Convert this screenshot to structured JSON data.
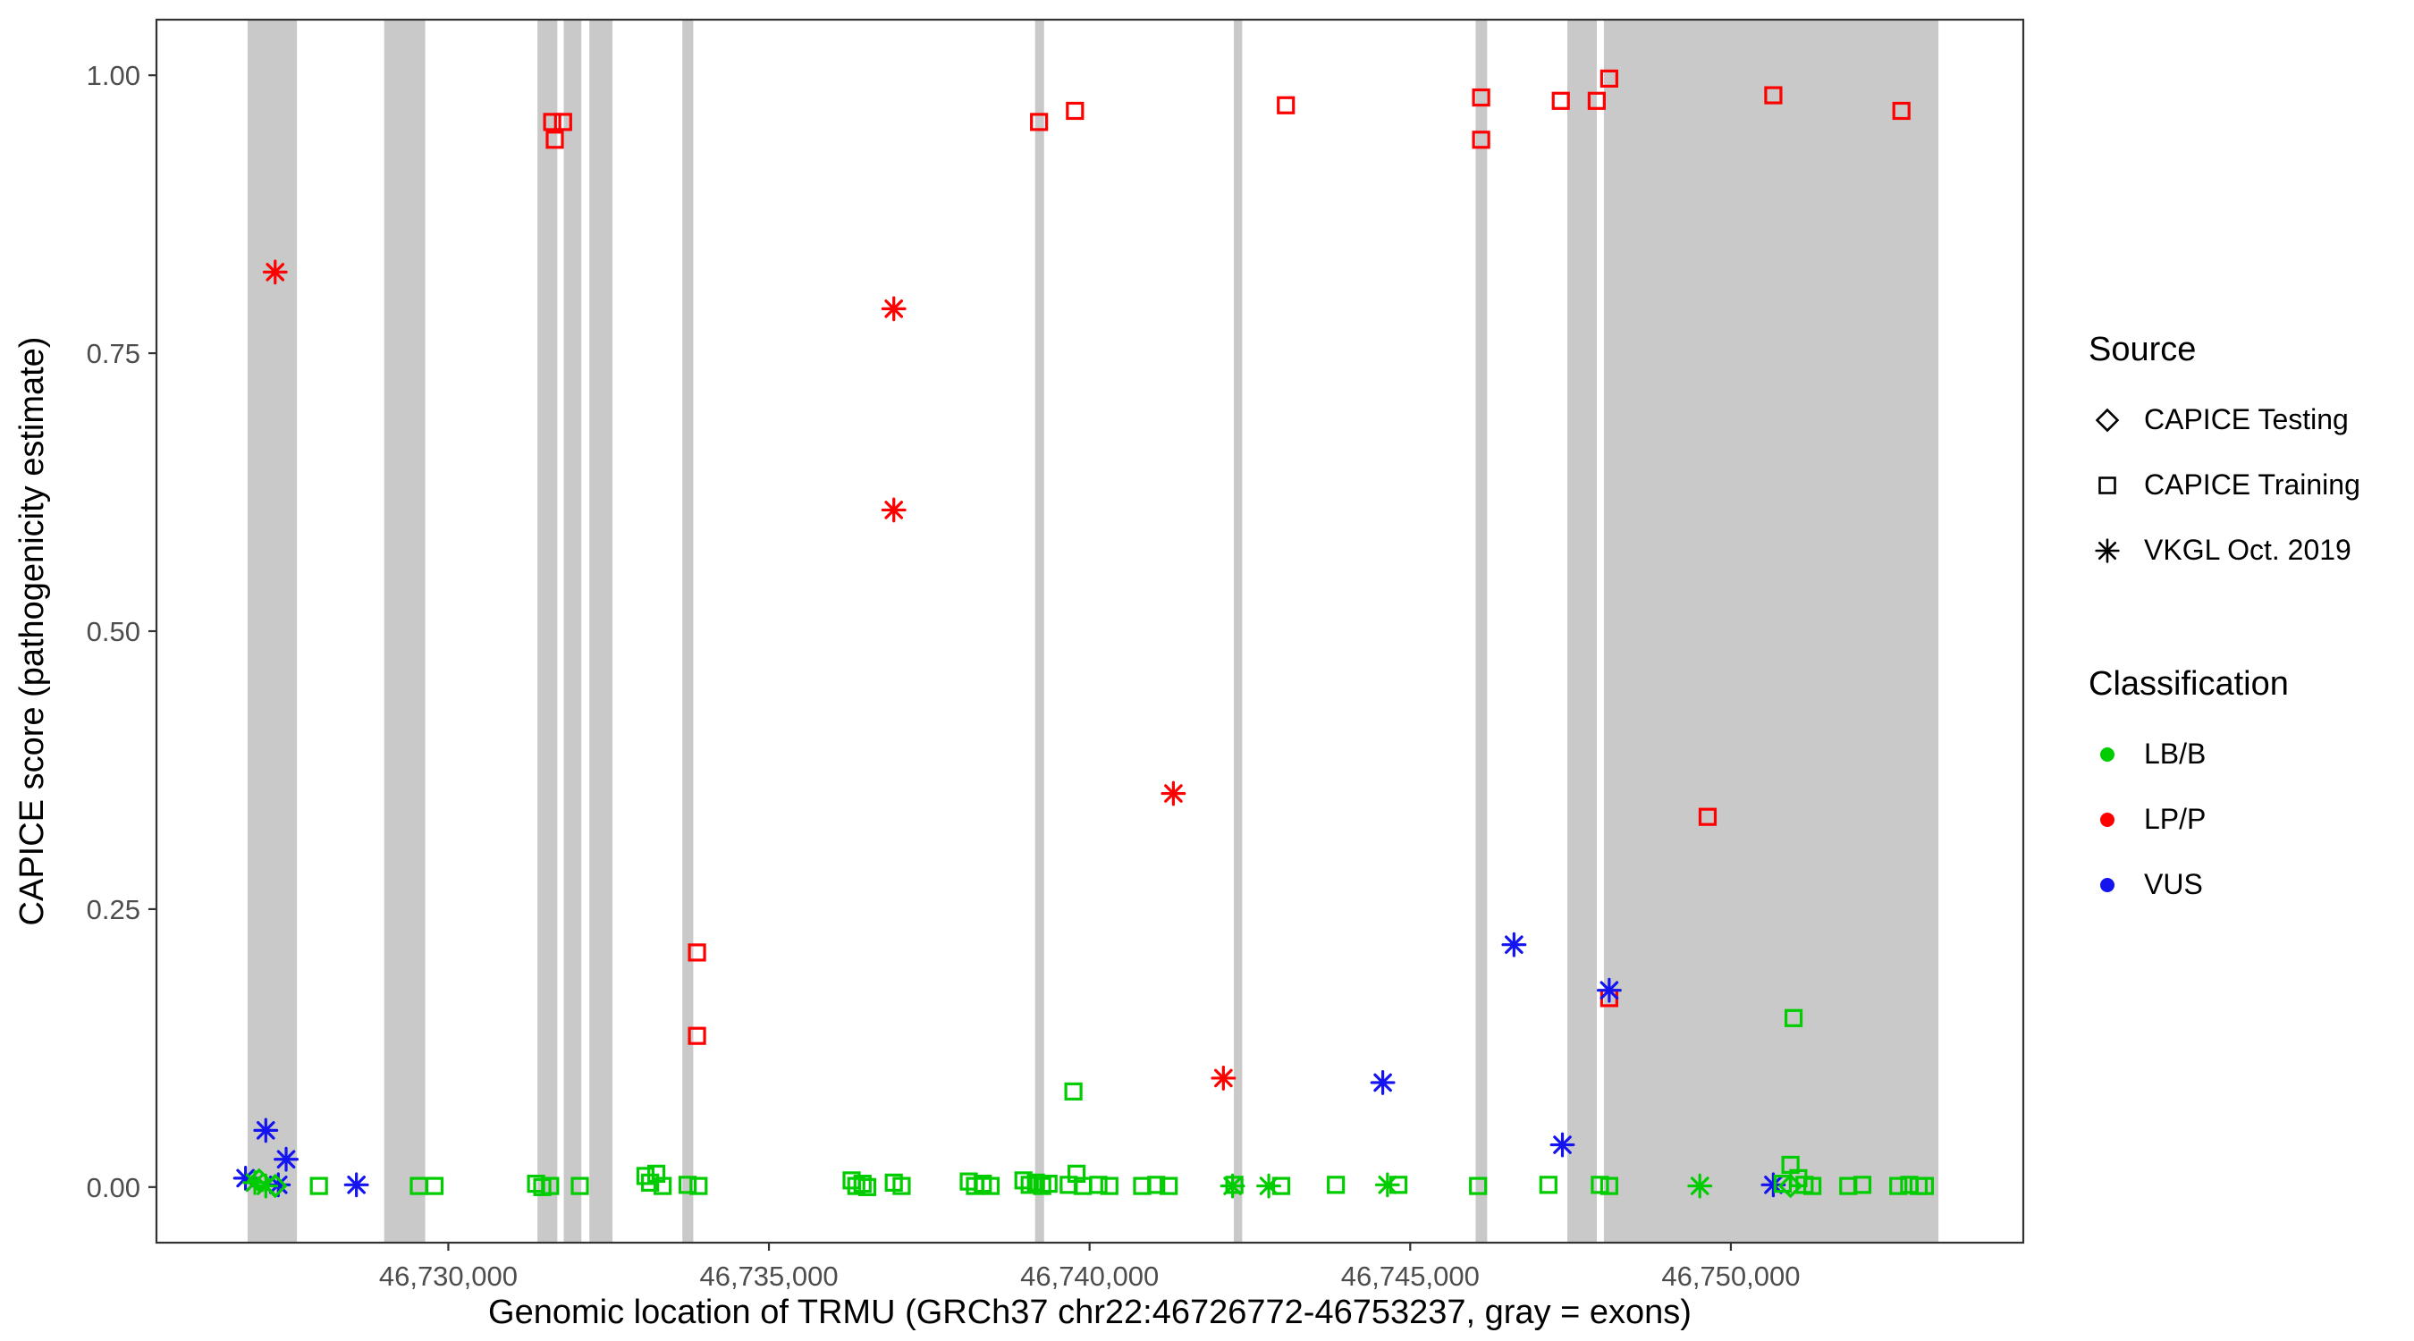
{
  "legend": {
    "source": {
      "title": "Source",
      "items": [
        {
          "label": "CAPICE Testing",
          "shape": "diamond",
          "color": "#000000"
        },
        {
          "label": "CAPICE Training",
          "shape": "square",
          "color": "#000000"
        },
        {
          "label": "VKGL Oct. 2019",
          "shape": "asterisk",
          "color": "#000000"
        }
      ]
    },
    "classification": {
      "title": "Classification",
      "items": [
        {
          "label": "LB/B",
          "shape": "circle",
          "color": "#00CC00"
        },
        {
          "label": "LP/P",
          "shape": "circle",
          "color": "#FF0000"
        },
        {
          "label": "VUS",
          "shape": "circle",
          "color": "#1414F0"
        }
      ]
    }
  },
  "chart_data": {
    "type": "scatter",
    "title": "",
    "xlabel": "Genomic location of TRMU (GRCh37 chr22:46726772-46753237, gray = exons)",
    "ylabel": "CAPICE score (pathogenicity estimate)",
    "xlim": [
      46725449,
      46754560
    ],
    "ylim": [
      -0.05,
      1.05
    ],
    "grid": "off",
    "legend_position": "right",
    "exon_color": "#C9C9C9",
    "x_ticks": [
      {
        "value": 46730000,
        "label": "46,730,000"
      },
      {
        "value": 46735000,
        "label": "46,735,000"
      },
      {
        "value": 46740000,
        "label": "46,740,000"
      },
      {
        "value": 46745000,
        "label": "46,745,000"
      },
      {
        "value": 46750000,
        "label": "46,750,000"
      }
    ],
    "y_ticks": [
      {
        "value": 0.0,
        "label": "0.00"
      },
      {
        "value": 0.25,
        "label": "0.25"
      },
      {
        "value": 0.5,
        "label": "0.50"
      },
      {
        "value": 0.75,
        "label": "0.75"
      },
      {
        "value": 1.0,
        "label": "1.00"
      }
    ],
    "exons": [
      [
        46726870,
        46727640
      ],
      [
        46729000,
        46729640
      ],
      [
        46731390,
        46731700
      ],
      [
        46731800,
        46732075
      ],
      [
        46732200,
        46732560
      ],
      [
        46733650,
        46733820
      ],
      [
        46739150,
        46739290
      ],
      [
        46742250,
        46742380
      ],
      [
        46746020,
        46746200
      ],
      [
        46747450,
        46747910
      ],
      [
        46748020,
        46753237
      ]
    ],
    "series": [
      {
        "id": "lp-capice-training",
        "classification": "LP/P",
        "source": "CAPICE Training",
        "shape": "square",
        "color": "#FF0000",
        "points": [
          [
            46731620,
            0.958
          ],
          [
            46731790,
            0.958
          ],
          [
            46731660,
            0.942
          ],
          [
            46733878,
            0.211
          ],
          [
            46733878,
            0.136
          ],
          [
            46739212,
            0.958
          ],
          [
            46739772,
            0.968
          ],
          [
            46743061,
            0.973
          ],
          [
            46746106,
            0.98
          ],
          [
            46746106,
            0.942
          ],
          [
            46747348,
            0.977
          ],
          [
            46747908,
            0.977
          ],
          [
            46748103,
            0.997
          ],
          [
            46748103,
            0.17
          ],
          [
            46749638,
            0.333
          ],
          [
            46750662,
            0.982
          ],
          [
            46752660,
            0.968
          ]
        ]
      },
      {
        "id": "lp-vkgl",
        "classification": "LP/P",
        "source": "VKGL Oct. 2019",
        "shape": "asterisk",
        "color": "#FF0000",
        "points": [
          [
            46727300,
            0.823
          ],
          [
            46736947,
            0.79
          ],
          [
            46736947,
            0.609
          ],
          [
            46741307,
            0.354
          ],
          [
            46742087,
            0.098
          ]
        ]
      },
      {
        "id": "vus-vkgl",
        "classification": "VUS",
        "source": "VKGL Oct. 2019",
        "shape": "asterisk",
        "color": "#1414F0",
        "points": [
          [
            46727154,
            0.051
          ],
          [
            46727471,
            0.025
          ],
          [
            46726838,
            0.008
          ],
          [
            46727349,
            0.002
          ],
          [
            46728567,
            0.002
          ],
          [
            46744572,
            0.094
          ],
          [
            46746618,
            0.218
          ],
          [
            46747373,
            0.038
          ],
          [
            46748103,
            0.177
          ],
          [
            46750662,
            0.002
          ]
        ]
      },
      {
        "id": "lb-capice-training",
        "classification": "LB/B",
        "source": "CAPICE Training",
        "shape": "square",
        "color": "#00CC00",
        "points": [
          [
            46727982,
            0.001
          ],
          [
            46729541,
            0.001
          ],
          [
            46729785,
            0.001
          ],
          [
            46731369,
            0.003
          ],
          [
            46731466,
            0.0
          ],
          [
            46731588,
            0.001
          ],
          [
            46732051,
            0.001
          ],
          [
            46733074,
            0.01
          ],
          [
            46733147,
            0.004
          ],
          [
            46733244,
            0.012
          ],
          [
            46733342,
            0.001
          ],
          [
            46733732,
            0.002
          ],
          [
            46733902,
            0.001
          ],
          [
            46736289,
            0.006
          ],
          [
            46736362,
            0.001
          ],
          [
            46736460,
            0.003
          ],
          [
            46736533,
            0.0
          ],
          [
            46736947,
            0.004
          ],
          [
            46737069,
            0.001
          ],
          [
            46738116,
            0.005
          ],
          [
            46738213,
            0.001
          ],
          [
            46738335,
            0.003
          ],
          [
            46738457,
            0.001
          ],
          [
            46738969,
            0.006
          ],
          [
            46739066,
            0.002
          ],
          [
            46739164,
            0.004
          ],
          [
            46739261,
            0.001
          ],
          [
            46739359,
            0.003
          ],
          [
            46739675,
            0.002
          ],
          [
            46739748,
            0.086
          ],
          [
            46739797,
            0.012
          ],
          [
            46739894,
            0.001
          ],
          [
            46740138,
            0.002
          ],
          [
            46740308,
            0.001
          ],
          [
            46740820,
            0.001
          ],
          [
            46741039,
            0.002
          ],
          [
            46741234,
            0.001
          ],
          [
            46742258,
            0.002
          ],
          [
            46742988,
            0.001
          ],
          [
            46743841,
            0.002
          ],
          [
            46744816,
            0.002
          ],
          [
            46746058,
            0.001
          ],
          [
            46747154,
            0.002
          ],
          [
            46747957,
            0.002
          ],
          [
            46748103,
            0.001
          ],
          [
            46750808,
            0.003
          ],
          [
            46750930,
            0.02
          ],
          [
            46750978,
            0.152
          ],
          [
            46751052,
            0.008
          ],
          [
            46751149,
            0.002
          ],
          [
            46751271,
            0.001
          ],
          [
            46751831,
            0.001
          ],
          [
            46752050,
            0.002
          ],
          [
            46752611,
            0.001
          ],
          [
            46752781,
            0.002
          ],
          [
            46752928,
            0.001
          ],
          [
            46753025,
            0.001
          ]
        ]
      },
      {
        "id": "lb-vkgl",
        "classification": "LB/B",
        "source": "VKGL Oct. 2019",
        "shape": "asterisk",
        "color": "#00CC00",
        "points": [
          [
            46726983,
            0.004
          ],
          [
            46727154,
            0.001
          ],
          [
            46742230,
            0.001
          ],
          [
            46742794,
            0.001
          ],
          [
            46744645,
            0.002
          ],
          [
            46749516,
            0.001
          ]
        ]
      },
      {
        "id": "lb-capice-testing",
        "classification": "LB/B",
        "source": "CAPICE Testing",
        "shape": "diamond",
        "color": "#00CC00",
        "points": [
          [
            46727050,
            0.006
          ],
          [
            46727300,
            0.001
          ],
          [
            46750930,
            0.001
          ]
        ]
      }
    ]
  }
}
